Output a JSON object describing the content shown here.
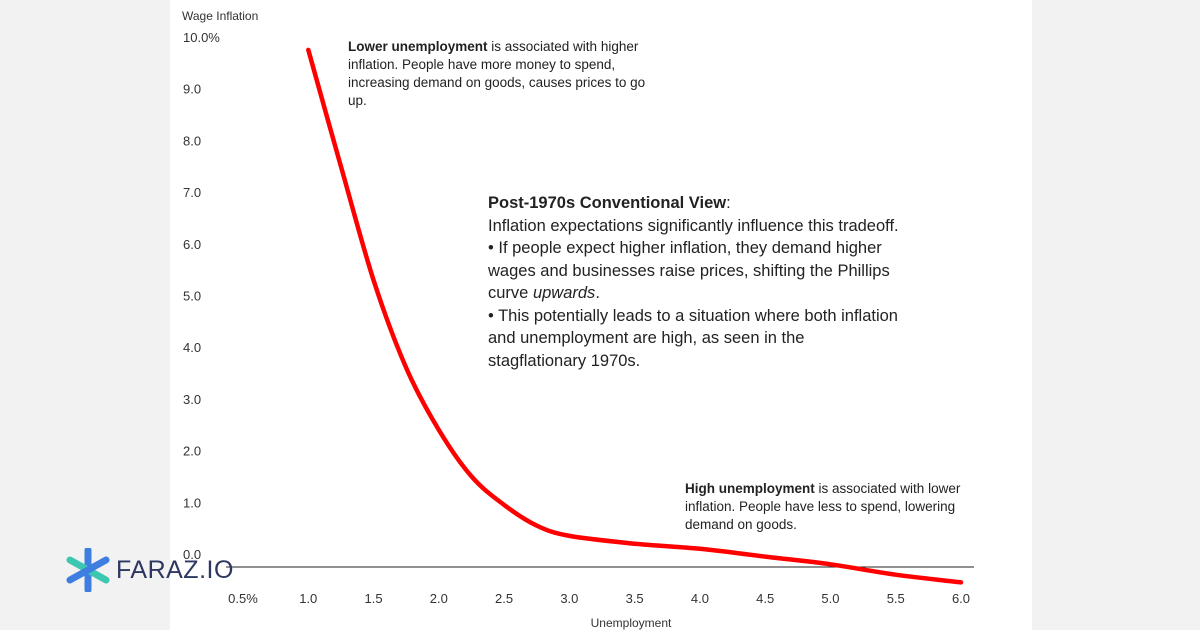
{
  "chart_data": {
    "type": "line",
    "title": "",
    "xlabel": "Unemployment",
    "ylabel": "Wage Inflation",
    "xlim": [
      0.5,
      6.0
    ],
    "ylim": [
      0.0,
      10.0
    ],
    "x_ticks": [
      {
        "value": 0.5,
        "label": "0.5%"
      },
      {
        "value": 1.0,
        "label": "1.0"
      },
      {
        "value": 1.5,
        "label": "1.5"
      },
      {
        "value": 2.0,
        "label": "2.0"
      },
      {
        "value": 2.5,
        "label": "2.5"
      },
      {
        "value": 3.0,
        "label": "3.0"
      },
      {
        "value": 3.5,
        "label": "3.5"
      },
      {
        "value": 4.0,
        "label": "4.0"
      },
      {
        "value": 4.5,
        "label": "4.5"
      },
      {
        "value": 5.0,
        "label": "5.0"
      },
      {
        "value": 5.5,
        "label": "5.5"
      },
      {
        "value": 6.0,
        "label": "6.0"
      }
    ],
    "y_ticks": [
      {
        "value": 0.0,
        "label": "0.0"
      },
      {
        "value": 1.0,
        "label": "1.0"
      },
      {
        "value": 2.0,
        "label": "2.0"
      },
      {
        "value": 3.0,
        "label": "3.0"
      },
      {
        "value": 4.0,
        "label": "4.0"
      },
      {
        "value": 5.0,
        "label": "5.0"
      },
      {
        "value": 6.0,
        "label": "6.0"
      },
      {
        "value": 7.0,
        "label": "7.0"
      },
      {
        "value": 8.0,
        "label": "8.0"
      },
      {
        "value": 9.0,
        "label": "9.0"
      },
      {
        "value": 10.0,
        "label": "10.0%"
      }
    ],
    "series": [
      {
        "name": "Phillips curve",
        "color": "#ff0000",
        "x": [
          1.0,
          1.25,
          1.5,
          1.75,
          2.0,
          2.25,
          2.5,
          2.75,
          3.0,
          3.5,
          4.0,
          4.5,
          5.0,
          5.5,
          6.0
        ],
        "y": [
          9.75,
          7.5,
          5.3,
          3.6,
          2.4,
          1.5,
          0.95,
          0.55,
          0.35,
          0.2,
          0.1,
          -0.05,
          -0.2,
          -0.4,
          -0.55
        ]
      }
    ],
    "grid": false,
    "legend": "none"
  },
  "annotations": {
    "top": {
      "bold": "Lower unemployment",
      "text": " is associated with higher inflation. People have more money to spend, increasing demand on goods, causes prices to go up."
    },
    "middle": {
      "bold": "Post-1970s Conventional View",
      "colon": ":",
      "line1": "Inflation expectations significantly influence this tradeoff.",
      "bullet1_pre": "• If people expect higher inflation, they demand higher wages and businesses raise prices, shifting the Phillips curve ",
      "bullet1_em": "upwards",
      "bullet1_post": ".",
      "bullet2": "• This potentially leads to a situation where both inflation and unemployment are high, as seen in the stagflationary 1970s."
    },
    "bottom": {
      "bold": "High unemployment",
      "text": " is associated with lower inflation. People have less to spend, lowering demand on goods."
    }
  },
  "brand": {
    "name": "FARAZ.IO",
    "colors": {
      "blue": "#3d7ee0",
      "teal": "#3ec7b0",
      "text": "#2d3760"
    }
  },
  "colors": {
    "curve": "#ff0000",
    "axis": "#222222"
  }
}
